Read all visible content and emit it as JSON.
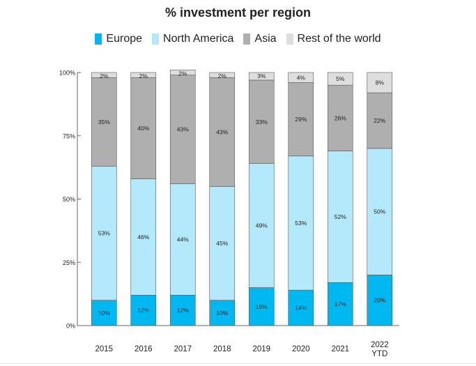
{
  "chart_data": {
    "type": "bar",
    "stacked": true,
    "percent": true,
    "title": "% investment per region",
    "categories": [
      [
        "2015"
      ],
      [
        "2016"
      ],
      [
        "2017"
      ],
      [
        "2018"
      ],
      [
        "2019"
      ],
      [
        "2020"
      ],
      [
        "2021"
      ],
      [
        "2022",
        "YTD"
      ]
    ],
    "series": [
      {
        "name": "Europe",
        "color": "#00b8f1",
        "values": [
          10,
          12,
          12,
          10,
          15,
          14,
          17,
          20
        ],
        "labels": [
          "10%",
          "12%",
          "12%",
          "10%",
          "15%",
          "14%",
          "17%",
          "20%"
        ]
      },
      {
        "name": "North America",
        "color": "#b3e9fa",
        "values": [
          53,
          46,
          44,
          45,
          49,
          53,
          52,
          50
        ],
        "labels": [
          "53%",
          "46%",
          "44%",
          "45%",
          "49%",
          "53%",
          "52%",
          "50%"
        ]
      },
      {
        "name": "Asia",
        "color": "#afafaf",
        "values": [
          35,
          40,
          43,
          43,
          33,
          29,
          26,
          22
        ],
        "labels": [
          "35%",
          "40%",
          "43%",
          "43%",
          "33%",
          "29%",
          "26%",
          "22%"
        ]
      },
      {
        "name": "Rest of the world",
        "color": "#dedede",
        "values": [
          2,
          2,
          2,
          2,
          3,
          4,
          5,
          8
        ],
        "labels": [
          "2%",
          "2%",
          "2%",
          "2%",
          "3%",
          "4%",
          "5%",
          "8%"
        ]
      }
    ],
    "ylim": [
      0,
      100
    ],
    "yticks": [
      0,
      25,
      50,
      75,
      100
    ],
    "ytick_labels": [
      "0%",
      "25%",
      "50%",
      "75%",
      "100%"
    ],
    "xlabel": "",
    "ylabel": "",
    "grid": false,
    "legend_position": "top-center"
  }
}
